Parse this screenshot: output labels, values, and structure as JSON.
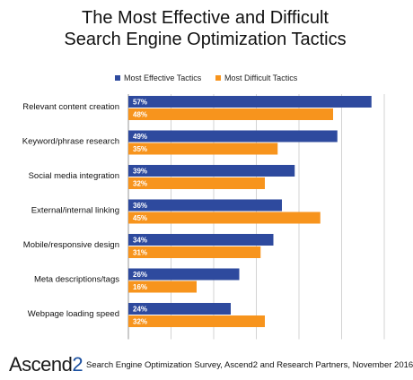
{
  "chart_data": {
    "type": "bar",
    "orientation": "horizontal",
    "title_lines": [
      "The Most Effective and Difficult",
      "Search Engine Optimization Tactics"
    ],
    "categories": [
      "Relevant content creation",
      "Keyword/phrase research",
      "Social media integration",
      "External/internal linking",
      "Mobile/responsive design",
      "Meta descriptions/tags",
      "Webpage loading speed"
    ],
    "series": [
      {
        "name": "Most Effective Tactics",
        "color": "#2e4a9e",
        "values": [
          57,
          49,
          39,
          36,
          34,
          26,
          24
        ],
        "labels": [
          "57%",
          "49%",
          "39%",
          "36%",
          "34%",
          "26%",
          "24%"
        ]
      },
      {
        "name": "Most Difficult Tactics",
        "color": "#f7941d",
        "values": [
          48,
          35,
          32,
          45,
          31,
          16,
          32
        ],
        "labels": [
          "48%",
          "35%",
          "32%",
          "45%",
          "31%",
          "16%",
          "32%"
        ]
      }
    ],
    "xlim": [
      0,
      60
    ],
    "gridlines": true,
    "legend_position": "top-right"
  },
  "footer": {
    "logo_text": "Ascend",
    "logo_digit": "2",
    "source": "Search Engine Optimization Survey, Ascend2 and Research Partners, November 2016"
  }
}
